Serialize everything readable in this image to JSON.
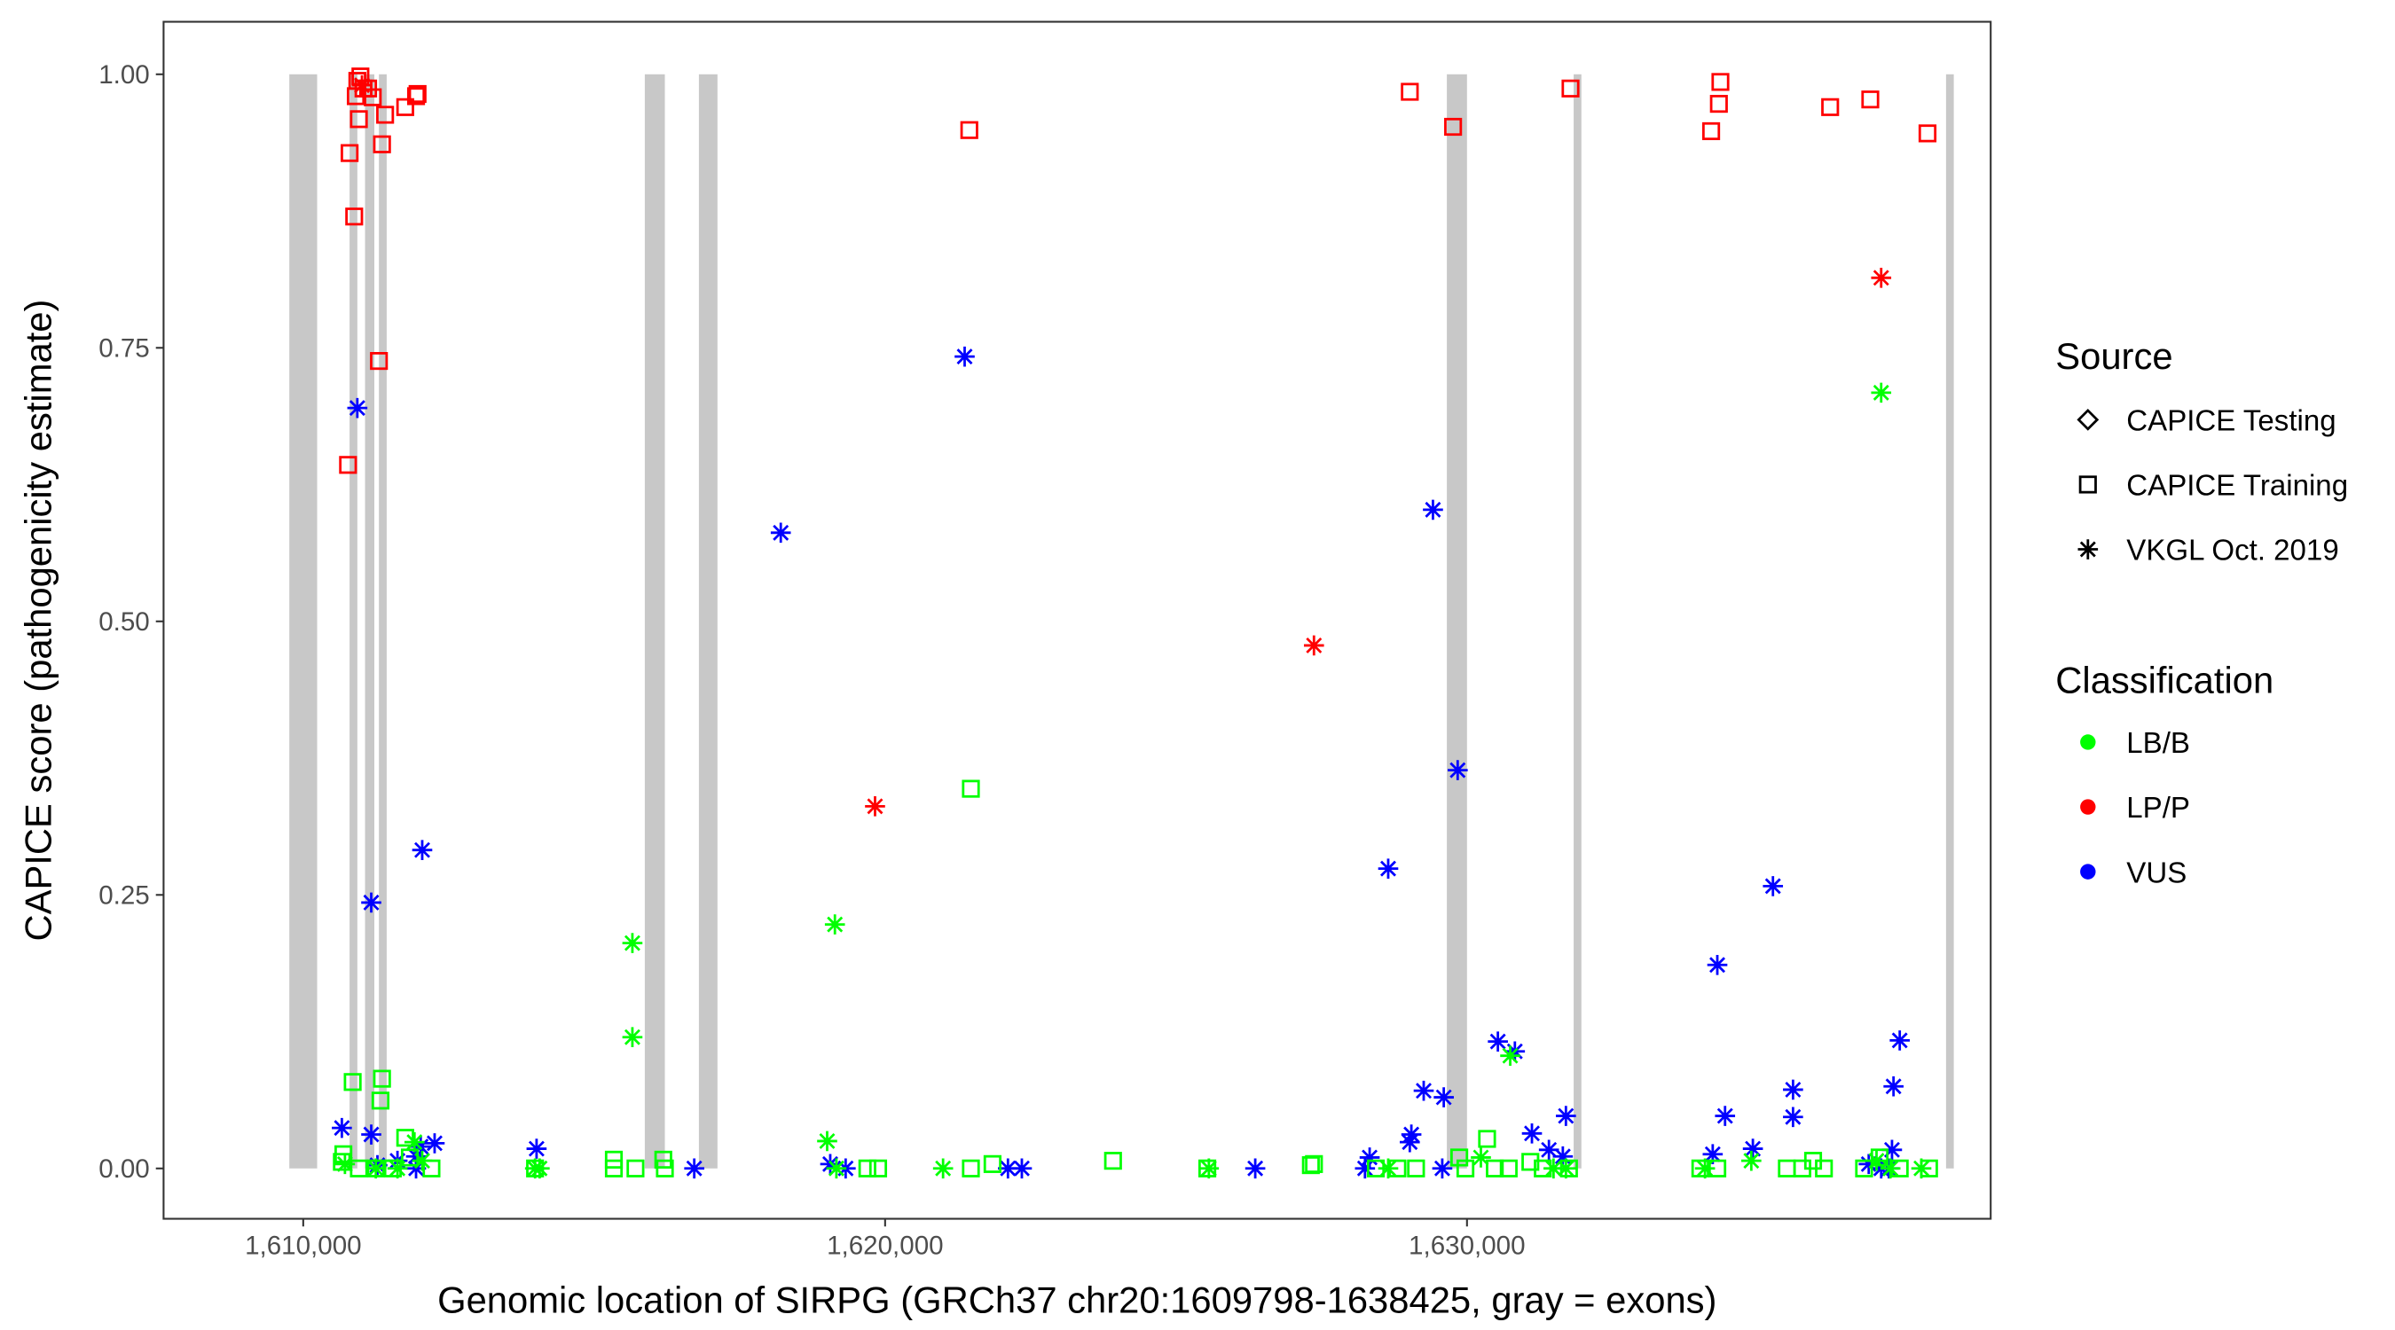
{
  "chart_data": {
    "type": "scatter",
    "xlabel": "Genomic location of SIRPG (GRCh37 chr20:1609798-1638425, gray = exons)",
    "ylabel": "CAPICE score (pathogenicity estimate)",
    "xlim": [
      1607600,
      1639000
    ],
    "ylim": [
      -0.046,
      1.048
    ],
    "x_ticks": [
      {
        "value": 1610000,
        "label": "1,610,000"
      },
      {
        "value": 1620000,
        "label": "1,620,000"
      },
      {
        "value": 1630000,
        "label": "1,630,000"
      }
    ],
    "y_ticks": [
      {
        "value": 0,
        "label": "0.00"
      },
      {
        "value": 0.25,
        "label": "0.25"
      },
      {
        "value": 0.5,
        "label": "0.50"
      },
      {
        "value": 0.75,
        "label": "0.75"
      },
      {
        "value": 1,
        "label": "1.00"
      }
    ],
    "grid": false,
    "exon_color": "#C8C8C8",
    "exons": [
      [
        1609761,
        1610239
      ],
      [
        1610797,
        1610930
      ],
      [
        1611062,
        1611222
      ],
      [
        1611301,
        1611434
      ],
      [
        1615870,
        1616215
      ],
      [
        1616800,
        1617119
      ],
      [
        1629654,
        1630000
      ],
      [
        1631833,
        1631966
      ],
      [
        1638233,
        1638366
      ]
    ],
    "legend_placement": "right",
    "legend": {
      "source_title": "Source",
      "sources": [
        {
          "key": "testing",
          "label": "CAPICE Testing",
          "shape": "diamond"
        },
        {
          "key": "training",
          "label": "CAPICE Training",
          "shape": "square"
        },
        {
          "key": "vkgl",
          "label": "VKGL Oct. 2019",
          "shape": "asterisk"
        }
      ],
      "classification_title": "Classification",
      "classes": [
        {
          "key": "LB/B",
          "label": "LB/B",
          "color": "#00FF00"
        },
        {
          "key": "LP/P",
          "label": "LP/P",
          "color": "#FF0000"
        },
        {
          "key": "VUS",
          "label": "VUS",
          "color": "#0000FF"
        }
      ]
    },
    "points": {
      "columns": [
        "position",
        "score",
        "classification",
        "source"
      ],
      "rows": [
        [
          1610770,
          0.643,
          "LP/P",
          "training"
        ],
        [
          1610797,
          0.928,
          "LP/P",
          "training"
        ],
        [
          1610876,
          0.87,
          "LP/P",
          "training"
        ],
        [
          1610930,
          0.994,
          "LP/P",
          "training"
        ],
        [
          1610983,
          0.998,
          "LP/P",
          "training"
        ],
        [
          1611036,
          0.987,
          "LP/P",
          "training"
        ],
        [
          1610903,
          0.98,
          "LP/P",
          "training"
        ],
        [
          1610956,
          0.959,
          "LP/P",
          "training"
        ],
        [
          1611115,
          0.987,
          "LP/P",
          "training"
        ],
        [
          1611195,
          0.979,
          "LP/P",
          "training"
        ],
        [
          1611354,
          0.936,
          "LP/P",
          "training"
        ],
        [
          1611407,
          0.963,
          "LP/P",
          "training"
        ],
        [
          1611301,
          0.738,
          "LP/P",
          "training"
        ],
        [
          1611753,
          0.97,
          "LP/P",
          "training"
        ],
        [
          1611939,
          0.98,
          "LP/P",
          "training"
        ],
        [
          1611965,
          0.982,
          "LP/P",
          "training"
        ],
        [
          1621447,
          0.949,
          "LP/P",
          "training"
        ],
        [
          1629017,
          0.984,
          "LP/P",
          "training"
        ],
        [
          1629761,
          0.952,
          "LP/P",
          "training"
        ],
        [
          1631779,
          0.987,
          "LP/P",
          "training"
        ],
        [
          1634196,
          0.948,
          "LP/P",
          "training"
        ],
        [
          1634355,
          0.993,
          "LP/P",
          "training"
        ],
        [
          1634329,
          0.973,
          "LP/P",
          "training"
        ],
        [
          1636241,
          0.97,
          "LP/P",
          "training"
        ],
        [
          1636931,
          0.977,
          "LP/P",
          "training"
        ],
        [
          1637914,
          0.946,
          "LP/P",
          "training"
        ],
        [
          1611009,
          0.99,
          "LP/P",
          "vkgl"
        ],
        [
          1619827,
          0.331,
          "LP/P",
          "vkgl"
        ],
        [
          1627370,
          0.478,
          "LP/P",
          "vkgl"
        ],
        [
          1637118,
          0.814,
          "LP/P",
          "vkgl"
        ],
        [
          1610664,
          0.037,
          "VUS",
          "vkgl"
        ],
        [
          1610930,
          0.695,
          "VUS",
          "vkgl"
        ],
        [
          1611169,
          0.243,
          "VUS",
          "vkgl"
        ],
        [
          1611169,
          0.031,
          "VUS",
          "vkgl"
        ],
        [
          1612045,
          0.291,
          "VUS",
          "vkgl"
        ],
        [
          1612019,
          0.02,
          "VUS",
          "vkgl"
        ],
        [
          1612258,
          0.023,
          "VUS",
          "vkgl"
        ],
        [
          1611939,
          0.011,
          "VUS",
          "vkgl"
        ],
        [
          1611620,
          0.007,
          "VUS",
          "vkgl"
        ],
        [
          1611275,
          0.003,
          "VUS",
          "vkgl"
        ],
        [
          1611939,
          0.0,
          "VUS",
          "vkgl"
        ],
        [
          1614010,
          0.018,
          "VUS",
          "vkgl"
        ],
        [
          1616720,
          0.0,
          "VUS",
          "vkgl"
        ],
        [
          1618207,
          0.581,
          "VUS",
          "vkgl"
        ],
        [
          1619057,
          0.004,
          "VUS",
          "vkgl"
        ],
        [
          1619322,
          0.0,
          "VUS",
          "vkgl"
        ],
        [
          1621367,
          0.742,
          "VUS",
          "vkgl"
        ],
        [
          1622111,
          0.0,
          "VUS",
          "vkgl"
        ],
        [
          1622350,
          0.0,
          "VUS",
          "vkgl"
        ],
        [
          1626361,
          0.0,
          "VUS",
          "vkgl"
        ],
        [
          1628247,
          0.0,
          "VUS",
          "vkgl"
        ],
        [
          1628327,
          0.01,
          "VUS",
          "vkgl"
        ],
        [
          1628646,
          0.274,
          "VUS",
          "vkgl"
        ],
        [
          1629017,
          0.024,
          "VUS",
          "vkgl"
        ],
        [
          1629044,
          0.031,
          "VUS",
          "vkgl"
        ],
        [
          1629256,
          0.071,
          "VUS",
          "vkgl"
        ],
        [
          1629415,
          0.602,
          "VUS",
          "vkgl"
        ],
        [
          1629601,
          0.065,
          "VUS",
          "vkgl"
        ],
        [
          1629575,
          0.0,
          "VUS",
          "vkgl"
        ],
        [
          1629840,
          0.364,
          "VUS",
          "vkgl"
        ],
        [
          1630531,
          0.116,
          "VUS",
          "vkgl"
        ],
        [
          1630823,
          0.107,
          "VUS",
          "vkgl"
        ],
        [
          1631116,
          0.032,
          "VUS",
          "vkgl"
        ],
        [
          1631408,
          0.017,
          "VUS",
          "vkgl"
        ],
        [
          1631647,
          0.011,
          "VUS",
          "vkgl"
        ],
        [
          1631700,
          0.048,
          "VUS",
          "vkgl"
        ],
        [
          1634223,
          0.013,
          "VUS",
          "vkgl"
        ],
        [
          1634302,
          0.186,
          "VUS",
          "vkgl"
        ],
        [
          1634435,
          0.048,
          "VUS",
          "vkgl"
        ],
        [
          1634913,
          0.018,
          "VUS",
          "vkgl"
        ],
        [
          1635258,
          0.258,
          "VUS",
          "vkgl"
        ],
        [
          1635603,
          0.072,
          "VUS",
          "vkgl"
        ],
        [
          1635603,
          0.047,
          "VUS",
          "vkgl"
        ],
        [
          1636904,
          0.004,
          "VUS",
          "vkgl"
        ],
        [
          1637118,
          0.0,
          "VUS",
          "vkgl"
        ],
        [
          1637304,
          0.017,
          "VUS",
          "vkgl"
        ],
        [
          1637330,
          0.075,
          "VUS",
          "vkgl"
        ],
        [
          1637437,
          0.117,
          "VUS",
          "vkgl"
        ],
        [
          1637251,
          0.0,
          "VUS",
          "vkgl"
        ],
        [
          1615657,
          0.206,
          "LB/B",
          "vkgl"
        ],
        [
          1615657,
          0.12,
          "LB/B",
          "vkgl"
        ],
        [
          1619137,
          0.223,
          "LB/B",
          "vkgl"
        ],
        [
          1619004,
          0.025,
          "LB/B",
          "vkgl"
        ],
        [
          1619163,
          0.0,
          "LB/B",
          "vkgl"
        ],
        [
          1620996,
          0.0,
          "LB/B",
          "vkgl"
        ],
        [
          1613984,
          0.0,
          "LB/B",
          "vkgl"
        ],
        [
          1614063,
          0.0,
          "LB/B",
          "vkgl"
        ],
        [
          1625564,
          0.0,
          "LB/B",
          "vkgl"
        ],
        [
          1637118,
          0.709,
          "LB/B",
          "vkgl"
        ],
        [
          1630743,
          0.103,
          "LB/B",
          "vkgl"
        ],
        [
          1634886,
          0.007,
          "LB/B",
          "vkgl"
        ],
        [
          1610717,
          0.004,
          "LB/B",
          "vkgl"
        ],
        [
          1611248,
          0.0,
          "LB/B",
          "vkgl"
        ],
        [
          1611620,
          0.0,
          "LB/B",
          "vkgl"
        ],
        [
          1612045,
          0.007,
          "LB/B",
          "vkgl"
        ],
        [
          1611912,
          0.024,
          "LB/B",
          "vkgl"
        ],
        [
          1628646,
          0.0,
          "LB/B",
          "vkgl"
        ],
        [
          1630239,
          0.01,
          "LB/B",
          "vkgl"
        ],
        [
          1631487,
          0.0,
          "LB/B",
          "vkgl"
        ],
        [
          1631700,
          0.0,
          "LB/B",
          "vkgl"
        ],
        [
          1634090,
          0.0,
          "LB/B",
          "vkgl"
        ],
        [
          1637038,
          0.007,
          "LB/B",
          "vkgl"
        ],
        [
          1637277,
          0.0,
          "LB/B",
          "vkgl"
        ],
        [
          1637808,
          0.0,
          "LB/B",
          "vkgl"
        ],
        [
          1610850,
          0.079,
          "LB/B",
          "training"
        ],
        [
          1611354,
          0.082,
          "LB/B",
          "training"
        ],
        [
          1611328,
          0.062,
          "LB/B",
          "training"
        ],
        [
          1610690,
          0.013,
          "LB/B",
          "training"
        ],
        [
          1610664,
          0.006,
          "LB/B",
          "training"
        ],
        [
          1610956,
          0.0,
          "LB/B",
          "training"
        ],
        [
          1611248,
          0.0,
          "LB/B",
          "training"
        ],
        [
          1611540,
          0.0,
          "LB/B",
          "training"
        ],
        [
          1611753,
          0.028,
          "LB/B",
          "training"
        ],
        [
          1612204,
          0.0,
          "LB/B",
          "training"
        ],
        [
          1611832,
          0.01,
          "LB/B",
          "training"
        ],
        [
          1613984,
          0.0,
          "LB/B",
          "training"
        ],
        [
          1615338,
          0.008,
          "LB/B",
          "training"
        ],
        [
          1615338,
          0.0,
          "LB/B",
          "training"
        ],
        [
          1615710,
          0.0,
          "LB/B",
          "training"
        ],
        [
          1616188,
          0.008,
          "LB/B",
          "training"
        ],
        [
          1616215,
          0.0,
          "LB/B",
          "training"
        ],
        [
          1619695,
          0.0,
          "LB/B",
          "training"
        ],
        [
          1619880,
          0.0,
          "LB/B",
          "training"
        ],
        [
          1621474,
          0.347,
          "LB/B",
          "training"
        ],
        [
          1621474,
          0.0,
          "LB/B",
          "training"
        ],
        [
          1621846,
          0.004,
          "LB/B",
          "training"
        ],
        [
          1623917,
          0.007,
          "LB/B",
          "training"
        ],
        [
          1625537,
          0.0,
          "LB/B",
          "training"
        ],
        [
          1627317,
          0.003,
          "LB/B",
          "training"
        ],
        [
          1627370,
          0.004,
          "LB/B",
          "training"
        ],
        [
          1628433,
          0.0,
          "LB/B",
          "training"
        ],
        [
          1628805,
          0.0,
          "LB/B",
          "training"
        ],
        [
          1629124,
          0.0,
          "LB/B",
          "training"
        ],
        [
          1629867,
          0.01,
          "LB/B",
          "training"
        ],
        [
          1629973,
          0.0,
          "LB/B",
          "training"
        ],
        [
          1630345,
          0.027,
          "LB/B",
          "training"
        ],
        [
          1630478,
          0.0,
          "LB/B",
          "training"
        ],
        [
          1630717,
          0.0,
          "LB/B",
          "training"
        ],
        [
          1631089,
          0.006,
          "LB/B",
          "training"
        ],
        [
          1631302,
          0.0,
          "LB/B",
          "training"
        ],
        [
          1631753,
          0.0,
          "LB/B",
          "training"
        ],
        [
          1634010,
          0.0,
          "LB/B",
          "training"
        ],
        [
          1634302,
          0.0,
          "LB/B",
          "training"
        ],
        [
          1635497,
          0.0,
          "LB/B",
          "training"
        ],
        [
          1635763,
          0.0,
          "LB/B",
          "training"
        ],
        [
          1635948,
          0.007,
          "LB/B",
          "training"
        ],
        [
          1636134,
          0.0,
          "LB/B",
          "training"
        ],
        [
          1636824,
          0.0,
          "LB/B",
          "training"
        ],
        [
          1637091,
          0.01,
          "LB/B",
          "training"
        ],
        [
          1637437,
          0.0,
          "LB/B",
          "training"
        ],
        [
          1637941,
          0.0,
          "LB/B",
          "training"
        ]
      ]
    }
  }
}
